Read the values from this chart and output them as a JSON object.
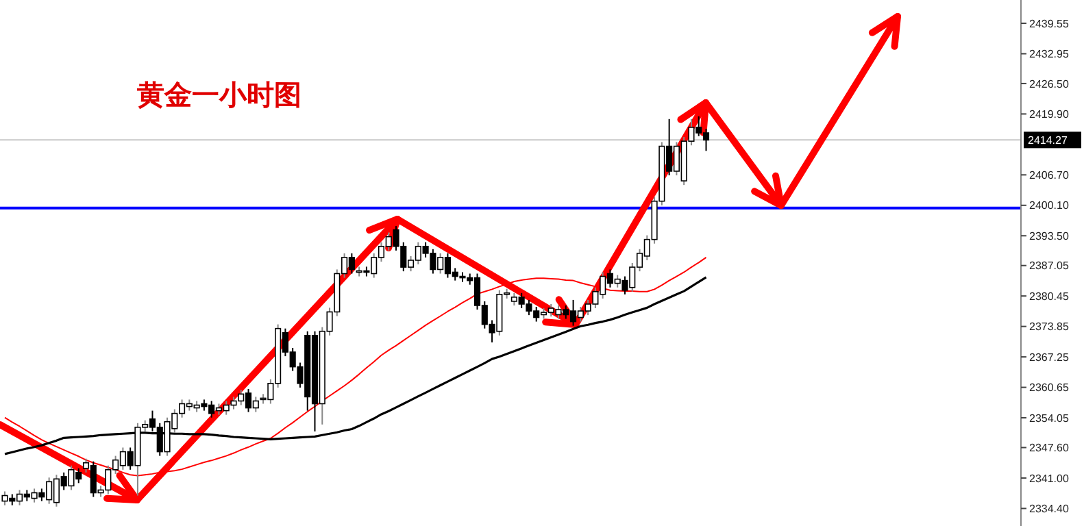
{
  "chart_data": {
    "type": "candlestick",
    "title": "黄金一小时图",
    "categories": [
      null,
      null,
      null,
      null,
      null,
      null,
      null,
      null,
      null,
      null,
      null,
      null,
      null,
      null,
      null,
      null,
      null,
      null,
      null,
      null,
      null,
      null,
      null,
      null,
      null,
      null,
      null,
      null,
      null,
      null,
      null,
      null,
      null,
      null,
      null,
      null,
      null,
      null,
      null,
      null,
      null,
      null,
      null,
      null,
      null,
      null,
      null,
      null,
      null,
      null,
      null,
      null,
      null,
      null,
      null,
      null,
      null,
      null,
      null,
      null,
      null,
      null,
      null,
      null,
      null,
      null,
      null,
      null,
      null,
      null,
      null,
      null,
      null,
      null,
      null,
      null,
      null,
      null,
      null,
      null,
      null,
      null,
      null,
      null,
      null,
      null,
      null,
      null,
      null,
      null,
      null,
      null,
      null,
      null,
      null,
      null,
      null,
      null,
      null,
      null,
      null,
      null,
      null,
      null,
      null,
      null,
      null,
      null,
      null,
      null,
      null,
      null,
      null,
      null,
      null,
      null,
      null,
      null,
      null,
      null,
      null,
      null,
      null,
      null,
      null,
      null,
      null,
      null,
      null,
      null,
      null,
      null,
      null,
      null,
      null,
      null,
      null,
      null
    ],
    "ohlc": [
      [
        2336.0,
        2338.1,
        2335.1,
        2337.2
      ],
      [
        2336.6,
        2337.5,
        2335.1,
        2336.0
      ],
      [
        2336.0,
        2338.4,
        2335.1,
        2337.5
      ],
      [
        2337.5,
        2338.4,
        2336.0,
        2336.9
      ],
      [
        2336.6,
        2338.7,
        2335.7,
        2337.8
      ],
      [
        2337.8,
        2338.7,
        2336.0,
        2336.9
      ],
      [
        2336.3,
        2341.1,
        2335.4,
        2340.2
      ],
      [
        2335.7,
        2341.7,
        2334.8,
        2340.8
      ],
      [
        2341.3,
        2342.2,
        2338.4,
        2339.3
      ],
      [
        2339.3,
        2343.7,
        2338.4,
        2342.8
      ],
      [
        2342.2,
        2343.1,
        2339.9,
        2340.8
      ],
      [
        2343.1,
        2345.2,
        2342.2,
        2344.3
      ],
      [
        2343.7,
        2344.6,
        2336.9,
        2337.8
      ],
      [
        2337.8,
        2339.3,
        2336.9,
        2338.4
      ],
      [
        2338.4,
        2343.7,
        2337.5,
        2342.8
      ],
      [
        2342.8,
        2345.8,
        2341.9,
        2344.9
      ],
      [
        2343.7,
        2347.6,
        2342.8,
        2346.7
      ],
      [
        2346.7,
        2347.6,
        2342.8,
        2343.7
      ],
      [
        2343.7,
        2352.9,
        2337.2,
        2352.0
      ],
      [
        2352.0,
        2353.5,
        2351.1,
        2352.6
      ],
      [
        2353.8,
        2355.6,
        2351.1,
        2352.0
      ],
      [
        2352.0,
        2352.9,
        2345.8,
        2346.7
      ],
      [
        2346.7,
        2354.1,
        2345.8,
        2353.2
      ],
      [
        2351.7,
        2355.9,
        2350.8,
        2355.0
      ],
      [
        2355.0,
        2358.0,
        2354.1,
        2357.1
      ],
      [
        2356.5,
        2358.0,
        2355.6,
        2357.1
      ],
      [
        2356.2,
        2357.7,
        2355.3,
        2356.8
      ],
      [
        2357.1,
        2358.0,
        2355.6,
        2356.5
      ],
      [
        2356.8,
        2357.7,
        2354.1,
        2355.0
      ],
      [
        2355.6,
        2357.1,
        2354.7,
        2356.2
      ],
      [
        2355.6,
        2357.7,
        2354.7,
        2356.8
      ],
      [
        2356.8,
        2358.6,
        2355.9,
        2357.7
      ],
      [
        2357.7,
        2360.1,
        2356.8,
        2359.2
      ],
      [
        2359.4,
        2360.3,
        2355.3,
        2356.2
      ],
      [
        2356.2,
        2358.6,
        2355.3,
        2357.7
      ],
      [
        2358.0,
        2359.2,
        2357.1,
        2358.3
      ],
      [
        2358.0,
        2362.4,
        2357.1,
        2361.5
      ],
      [
        2361.5,
        2374.3,
        2360.6,
        2373.4
      ],
      [
        2372.5,
        2373.4,
        2367.4,
        2368.3
      ],
      [
        2368.3,
        2369.2,
        2364.2,
        2365.1
      ],
      [
        2365.1,
        2366.0,
        2360.6,
        2361.5
      ],
      [
        2371.9,
        2372.8,
        2355.6,
        2358.6
      ],
      [
        2371.9,
        2372.8,
        2351.1,
        2357.1
      ],
      [
        2357.1,
        2373.7,
        2352.6,
        2372.8
      ],
      [
        2372.8,
        2377.9,
        2371.9,
        2377.0
      ],
      [
        2377.0,
        2386.2,
        2376.1,
        2385.3
      ],
      [
        2385.3,
        2389.7,
        2384.4,
        2388.8
      ],
      [
        2388.8,
        2389.7,
        2385.3,
        2386.2
      ],
      [
        2385.6,
        2386.8,
        2384.7,
        2385.9
      ],
      [
        2385.9,
        2386.8,
        2384.7,
        2385.6
      ],
      [
        2385.3,
        2389.7,
        2384.4,
        2388.8
      ],
      [
        2388.8,
        2392.1,
        2387.9,
        2391.2
      ],
      [
        2391.2,
        2394.2,
        2390.3,
        2393.3
      ],
      [
        2394.8,
        2395.6,
        2390.3,
        2391.2
      ],
      [
        2391.2,
        2392.1,
        2385.8,
        2386.7
      ],
      [
        2386.7,
        2389.1,
        2385.8,
        2388.2
      ],
      [
        2388.2,
        2392.1,
        2387.3,
        2391.2
      ],
      [
        2391.2,
        2392.1,
        2388.8,
        2389.7
      ],
      [
        2389.7,
        2390.6,
        2385.3,
        2386.2
      ],
      [
        2386.2,
        2389.7,
        2385.3,
        2388.8
      ],
      [
        2388.8,
        2389.7,
        2384.4,
        2385.3
      ],
      [
        2385.6,
        2386.5,
        2383.8,
        2384.7
      ],
      [
        2384.7,
        2385.6,
        2383.5,
        2384.4
      ],
      [
        2384.4,
        2385.3,
        2382.9,
        2383.8
      ],
      [
        2384.4,
        2385.3,
        2377.5,
        2378.4
      ],
      [
        2378.4,
        2379.3,
        2373.4,
        2374.3
      ],
      [
        2374.3,
        2375.2,
        2370.4,
        2372.5
      ],
      [
        2372.8,
        2381.7,
        2371.9,
        2380.8
      ],
      [
        2380.8,
        2382.0,
        2379.9,
        2381.1
      ],
      [
        2379.3,
        2381.1,
        2378.4,
        2380.2
      ],
      [
        2380.2,
        2381.1,
        2377.8,
        2378.7
      ],
      [
        2378.7,
        2379.6,
        2376.3,
        2377.2
      ],
      [
        2377.2,
        2378.1,
        2374.9,
        2375.8
      ],
      [
        2376.4,
        2377.8,
        2375.5,
        2376.9
      ],
      [
        2376.9,
        2378.7,
        2376.0,
        2377.8
      ],
      [
        2376.4,
        2378.4,
        2375.5,
        2377.5
      ],
      [
        2377.5,
        2378.4,
        2375.5,
        2376.4
      ],
      [
        2377.2,
        2379.6,
        2374.0,
        2374.9
      ],
      [
        2375.8,
        2378.1,
        2374.9,
        2377.2
      ],
      [
        2377.2,
        2379.6,
        2376.3,
        2378.7
      ],
      [
        2378.7,
        2382.3,
        2377.8,
        2381.4
      ],
      [
        2380.8,
        2385.6,
        2379.9,
        2384.7
      ],
      [
        2385.3,
        2386.2,
        2382.3,
        2383.2
      ],
      [
        2383.2,
        2385.0,
        2382.3,
        2384.1
      ],
      [
        2383.8,
        2384.7,
        2380.8,
        2381.7
      ],
      [
        2382.3,
        2387.6,
        2381.4,
        2386.7
      ],
      [
        2386.7,
        2390.6,
        2385.8,
        2389.7
      ],
      [
        2389.1,
        2393.6,
        2388.2,
        2392.7
      ],
      [
        2392.7,
        2401.9,
        2391.8,
        2401.0
      ],
      [
        2401.0,
        2413.8,
        2400.1,
        2412.9
      ],
      [
        2412.9,
        2418.8,
        2406.6,
        2407.5
      ],
      [
        2407.5,
        2413.8,
        2406.6,
        2412.9
      ],
      [
        2405.4,
        2414.9,
        2404.5,
        2414.0
      ],
      [
        2414.0,
        2418.8,
        2413.1,
        2417.0
      ],
      [
        2417.0,
        2419.4,
        2415.1,
        2415.8
      ],
      [
        2415.8,
        2416.7,
        2411.9,
        2414.27
      ],
      null,
      null,
      null,
      null,
      null,
      null,
      null,
      null,
      null,
      null,
      null,
      null,
      null,
      null,
      null,
      null,
      null,
      null,
      null,
      null,
      null,
      null,
      null,
      null,
      null,
      null,
      null,
      null,
      null,
      null,
      null,
      null,
      null,
      null,
      null,
      null,
      null,
      null,
      null,
      null,
      null,
      null
    ],
    "series": [
      {
        "type": "line",
        "color": "#ff0000",
        "values": [
          2354.1,
          2353.1,
          2352.2,
          2351.2,
          2350.2,
          2349.3,
          2348.5,
          2347.8,
          2347.1,
          2346.4,
          2345.7,
          2344.9,
          2344.3,
          2343.8,
          2343.3,
          2342.8,
          2342.2,
          2341.7,
          2341.5,
          2341.7,
          2341.9,
          2342.2,
          2342.4,
          2342.6,
          2342.9,
          2343.4,
          2343.9,
          2344.4,
          2344.8,
          2345.3,
          2345.8,
          2346.4,
          2347.1,
          2347.7,
          2348.4,
          2349.0,
          2349.6,
          2350.7,
          2351.9,
          2353.0,
          2354.2,
          2355.4,
          2356.5,
          2357.7,
          2358.8,
          2359.9,
          2361.0,
          2362.2,
          2363.5,
          2364.9,
          2366.2,
          2367.6,
          2368.7,
          2369.7,
          2370.8,
          2371.9,
          2373.0,
          2374.1,
          2375.1,
          2376.1,
          2377.1,
          2378.0,
          2379.0,
          2379.9,
          2380.9,
          2381.4,
          2381.9,
          2382.5,
          2383.0,
          2383.6,
          2383.9,
          2384.1,
          2384.3,
          2384.3,
          2384.2,
          2384.1,
          2383.9,
          2383.8,
          2383.3,
          2382.9,
          2382.5,
          2382.1,
          2381.7,
          2381.6,
          2381.5,
          2381.5,
          2381.4,
          2381.4,
          2381.9,
          2382.8,
          2383.8,
          2384.7,
          2385.6,
          2386.7,
          2387.7,
          2388.8,
          null,
          null,
          null,
          null,
          null,
          null,
          null,
          null,
          null,
          null,
          null,
          null,
          null,
          null,
          null,
          null,
          null,
          null,
          null,
          null,
          null,
          null,
          null,
          null,
          null,
          null,
          null,
          null,
          null,
          null,
          null,
          null,
          null,
          null,
          null,
          null,
          null,
          null,
          null,
          null,
          null,
          null
        ]
      },
      {
        "type": "line",
        "color": "#000000",
        "values": [
          2346.2,
          2346.6,
          2347.0,
          2347.4,
          2347.7,
          2348.1,
          2348.6,
          2349.1,
          2349.7,
          2349.8,
          2349.9,
          2350.0,
          2350.1,
          2350.3,
          2350.4,
          2350.5,
          2350.6,
          2350.7,
          2350.8,
          2350.8,
          2350.7,
          2350.7,
          2350.7,
          2350.6,
          2350.6,
          2350.5,
          2350.5,
          2350.5,
          2350.4,
          2350.2,
          2350.1,
          2349.9,
          2349.8,
          2349.7,
          2349.6,
          2349.5,
          2349.4,
          2349.5,
          2349.6,
          2349.7,
          2349.8,
          2349.9,
          2350.0,
          2350.3,
          2350.6,
          2350.9,
          2351.3,
          2351.6,
          2352.3,
          2353.1,
          2353.9,
          2354.8,
          2355.5,
          2356.3,
          2357.1,
          2357.9,
          2358.7,
          2359.5,
          2360.3,
          2361.1,
          2361.9,
          2362.7,
          2363.5,
          2364.3,
          2365.1,
          2365.9,
          2366.8,
          2367.3,
          2367.9,
          2368.5,
          2369.1,
          2369.7,
          2370.3,
          2370.9,
          2371.5,
          2372.1,
          2372.7,
          2373.3,
          2373.9,
          2374.2,
          2374.6,
          2374.9,
          2375.3,
          2375.8,
          2376.4,
          2376.9,
          2377.4,
          2377.9,
          2378.7,
          2379.4,
          2380.1,
          2380.8,
          2381.5,
          2382.5,
          2383.5,
          2384.5,
          null,
          null,
          null,
          null,
          null,
          null,
          null,
          null,
          null,
          null,
          null,
          null,
          null,
          null,
          null,
          null,
          null,
          null,
          null,
          null,
          null,
          null,
          null,
          null,
          null,
          null,
          null,
          null,
          null,
          null,
          null,
          null,
          null,
          null,
          null,
          null,
          null,
          null,
          null,
          null,
          null,
          null
        ]
      }
    ],
    "ylim": [
      2330.6,
      2444.6
    ],
    "yticks": [
      {
        "value": 2334.4,
        "label": "2334.40"
      },
      {
        "value": 2341.0,
        "label": "2341.00"
      },
      {
        "value": 2347.6,
        "label": "2347.60"
      },
      {
        "value": 2354.05,
        "label": "2354.05"
      },
      {
        "value": 2360.65,
        "label": "2360.65"
      },
      {
        "value": 2367.25,
        "label": "2367.25"
      },
      {
        "value": 2373.85,
        "label": "2373.85"
      },
      {
        "value": 2380.45,
        "label": "2380.45"
      },
      {
        "value": 2387.05,
        "label": "2387.05"
      },
      {
        "value": 2393.5,
        "label": "2393.50"
      },
      {
        "value": 2400.1,
        "label": "2400.10"
      },
      {
        "value": 2406.7,
        "label": "2406.70"
      },
      {
        "value": 2419.9,
        "label": "2419.90"
      },
      {
        "value": 2426.5,
        "label": "2426.50"
      },
      {
        "value": 2432.95,
        "label": "2432.95"
      },
      {
        "value": 2439.55,
        "label": "2439.55"
      }
    ],
    "ref_lines": [
      {
        "axis": "y",
        "value": 2414.27,
        "label": "2414.27",
        "color": "#c8c8c8"
      },
      {
        "axis": "y",
        "value": 2399.5,
        "color": "#0000ff"
      }
    ]
  }
}
